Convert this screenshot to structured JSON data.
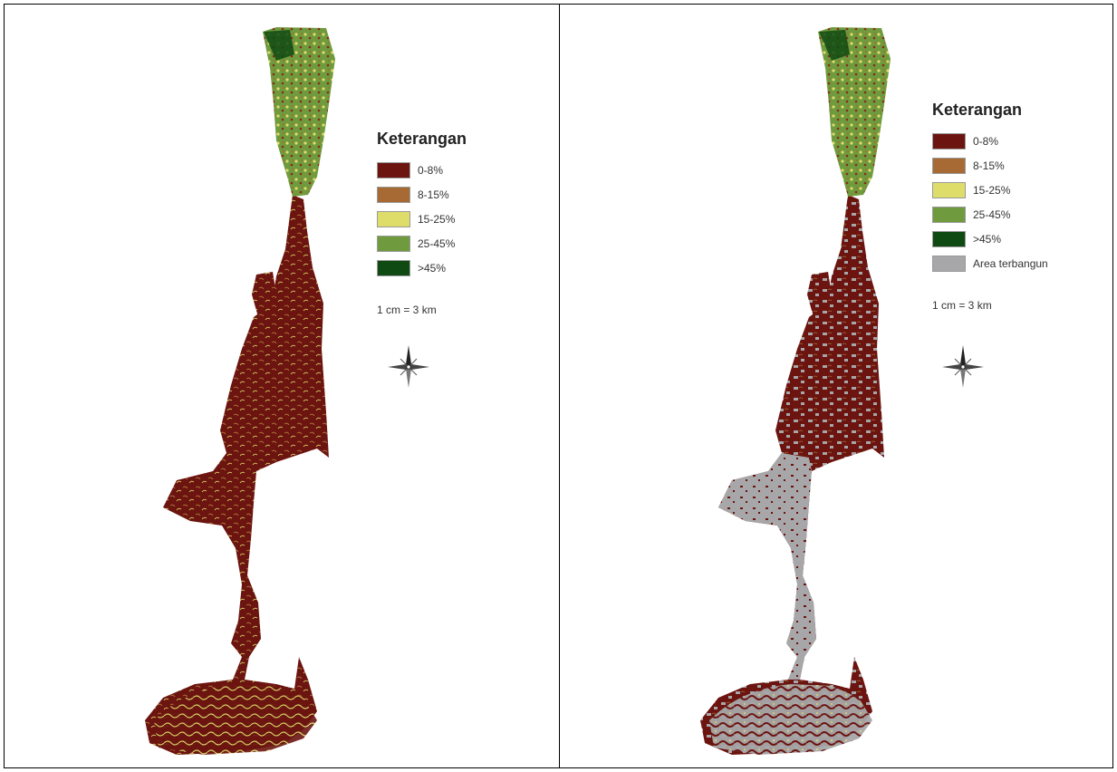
{
  "panels": [
    {
      "legend": {
        "title": "Keterangan",
        "items": [
          {
            "label": "0-8%",
            "color": "#6b1410"
          },
          {
            "label": "8-15%",
            "color": "#a86a35"
          },
          {
            "label": "15-25%",
            "color": "#dedd6a"
          },
          {
            "label": "25-45%",
            "color": "#6f9a3d"
          },
          {
            "label": ">45%",
            "color": "#0f4a12"
          }
        ],
        "scale": "1 cm = 3 km"
      }
    },
    {
      "legend": {
        "title": "Keterangan",
        "items": [
          {
            "label": "0-8%",
            "color": "#6b1410"
          },
          {
            "label": "8-15%",
            "color": "#a86a35"
          },
          {
            "label": "15-25%",
            "color": "#dedd6a"
          },
          {
            "label": "25-45%",
            "color": "#6f9a3d"
          },
          {
            "label": ">45%",
            "color": "#0f4a12"
          },
          {
            "label": "Area terbangun",
            "color": "#a7a6a8"
          }
        ],
        "scale": "1 cm = 3 km"
      }
    }
  ],
  "icons": {
    "north_arrow": "compass-rose-icon"
  }
}
